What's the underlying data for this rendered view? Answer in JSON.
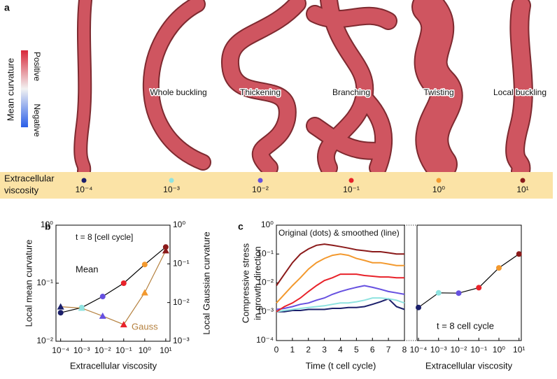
{
  "panel_a": {
    "label": "a",
    "colorbar": {
      "title": "Mean curvature",
      "max_label": "Positive",
      "min_label": "Negative"
    },
    "shape_labels": [
      "Whole buckling",
      "Thickening",
      "Branching",
      "Twisting",
      "Local buckling"
    ],
    "viscosity_row": {
      "title_lines": [
        "Extracellular",
        "viscosity"
      ],
      "ticks": [
        "10⁻⁴",
        "10⁻³",
        "10⁻²",
        "10⁻¹",
        "10⁰",
        "10¹"
      ],
      "colors": [
        "#1b1f6b",
        "#8fe3e0",
        "#6650e0",
        "#e8222a",
        "#f3992e",
        "#8b1a1a"
      ]
    }
  },
  "chart_data": [
    {
      "type": "line",
      "label": "b",
      "title": "t = 8 [cell cycle]",
      "x_label": "Extracellular viscosity",
      "y_label": "Local mean curvature",
      "y2_label": "Local Gaussian curvature",
      "x": [
        0.0001,
        0.001,
        0.01,
        0.1,
        1,
        10
      ],
      "xlog": true,
      "ylog": true,
      "y2log": true,
      "xlim": [
        6e-05,
        16
      ],
      "ylim": [
        0.01,
        1
      ],
      "y2lim": [
        0.001,
        1
      ],
      "xticks": [
        {
          "value": 0.0001,
          "label": "10⁻⁴"
        },
        {
          "value": 0.001,
          "label": "10⁻³"
        },
        {
          "value": 0.01,
          "label": "10⁻²"
        },
        {
          "value": 0.1,
          "label": "10⁻¹"
        },
        {
          "value": 1,
          "label": "10⁰"
        },
        {
          "value": 10,
          "label": "10¹"
        }
      ],
      "yticks": [
        {
          "value": 0.01,
          "label": "10⁻²"
        },
        {
          "value": 0.1,
          "label": "10⁻¹"
        },
        {
          "value": 1,
          "label": "10⁰"
        }
      ],
      "y2ticks": [
        {
          "value": 0.001,
          "label": "10⁻³"
        },
        {
          "value": 0.01,
          "label": "10⁻²"
        },
        {
          "value": 0.1,
          "label": "10⁻¹"
        },
        {
          "value": 1,
          "label": "10⁰"
        }
      ],
      "point_colors": [
        "#1b1f6b",
        "#8fe3e0",
        "#6650e0",
        "#e8222a",
        "#f3992e",
        "#8b1a1a"
      ],
      "series": [
        {
          "name": "Mean",
          "color": "#000000",
          "marker": "circle",
          "values": [
            0.031,
            0.038,
            0.059,
            0.1,
            0.21,
            0.42
          ]
        },
        {
          "name": "Gauss",
          "color": "#b5813f",
          "marker": "triangle",
          "axis": "y2",
          "values": [
            0.0078,
            0.0072,
            0.0045,
            0.0027,
            0.018,
            0.22
          ]
        }
      ]
    },
    {
      "type": "line",
      "label": "c",
      "annotation": "Original (dots) & smoothed (line)",
      "x_label": "Time (t cell cycle)",
      "y_label": [
        "Compressive stress",
        "in growth direction"
      ],
      "x": [
        0,
        0.5,
        1,
        1.5,
        2,
        2.5,
        3,
        3.5,
        4,
        4.5,
        5,
        5.5,
        6,
        6.5,
        7,
        7.5,
        8
      ],
      "xlog": false,
      "ylog": true,
      "xlim": [
        0,
        8
      ],
      "ylim": [
        0.0001,
        1
      ],
      "xticks": [
        0,
        1,
        2,
        3,
        4,
        5,
        6,
        7,
        8
      ],
      "yticks": [
        {
          "value": 0.0001,
          "label": "10⁻⁴"
        },
        {
          "value": 0.001,
          "label": "10⁻³"
        },
        {
          "value": 0.01,
          "label": "10⁻²"
        },
        {
          "value": 0.1,
          "label": "10⁻¹"
        },
        {
          "value": 1,
          "label": "10⁰"
        }
      ],
      "series": [
        {
          "color": "#1b1f6b",
          "values": [
            0.001,
            0.001,
            0.0011,
            0.0011,
            0.0012,
            0.0012,
            0.0012,
            0.0013,
            0.0013,
            0.0014,
            0.0014,
            0.0015,
            0.0018,
            0.0022,
            0.0028,
            0.0015,
            0.0012
          ]
        },
        {
          "color": "#8fe3e0",
          "values": [
            0.001,
            0.0011,
            0.0012,
            0.0013,
            0.0014,
            0.0015,
            0.0016,
            0.0018,
            0.002,
            0.002,
            0.0022,
            0.0025,
            0.003,
            0.003,
            0.0028,
            0.0025,
            0.002
          ]
        },
        {
          "color": "#6650e0",
          "values": [
            0.0012,
            0.0013,
            0.0015,
            0.0018,
            0.002,
            0.0025,
            0.003,
            0.004,
            0.005,
            0.006,
            0.007,
            0.008,
            0.007,
            0.006,
            0.005,
            0.0045,
            0.004
          ]
        },
        {
          "color": "#e8222a",
          "values": [
            0.001,
            0.0015,
            0.002,
            0.003,
            0.005,
            0.008,
            0.012,
            0.015,
            0.02,
            0.02,
            0.02,
            0.018,
            0.017,
            0.016,
            0.016,
            0.015,
            0.015
          ]
        },
        {
          "color": "#f3992e",
          "values": [
            0.002,
            0.004,
            0.008,
            0.015,
            0.03,
            0.05,
            0.07,
            0.09,
            0.1,
            0.09,
            0.07,
            0.06,
            0.05,
            0.05,
            0.045,
            0.04,
            0.04
          ]
        },
        {
          "color": "#8b1a1a",
          "values": [
            0.008,
            0.02,
            0.05,
            0.1,
            0.15,
            0.2,
            0.22,
            0.2,
            0.18,
            0.16,
            0.14,
            0.13,
            0.12,
            0.12,
            0.11,
            0.1,
            0.1
          ]
        }
      ]
    },
    {
      "type": "line",
      "annotation": "t = 8 cell cycle",
      "x_label": "Extracellular viscosity",
      "x": [
        0.0001,
        0.001,
        0.01,
        0.1,
        1,
        10
      ],
      "xlog": true,
      "ylog": true,
      "xlim": [
        8.5e-05,
        13
      ],
      "ylim": [
        0.0001,
        1
      ],
      "xticks": [
        {
          "value": 0.0001,
          "label": "10⁻⁴"
        },
        {
          "value": 0.001,
          "label": "10⁻³"
        },
        {
          "value": 0.01,
          "label": "10⁻²"
        },
        {
          "value": 0.1,
          "label": "10⁻¹"
        },
        {
          "value": 1,
          "label": "10⁰"
        },
        {
          "value": 10,
          "label": "10¹"
        }
      ],
      "point_colors": [
        "#1b1f6b",
        "#8fe3e0",
        "#6650e0",
        "#e8222a",
        "#f3992e",
        "#8b1a1a"
      ],
      "series": [
        {
          "color": "#000000",
          "marker": "circle",
          "values": [
            0.0014,
            0.0045,
            0.0044,
            0.0068,
            0.033,
            0.1
          ]
        }
      ]
    }
  ]
}
